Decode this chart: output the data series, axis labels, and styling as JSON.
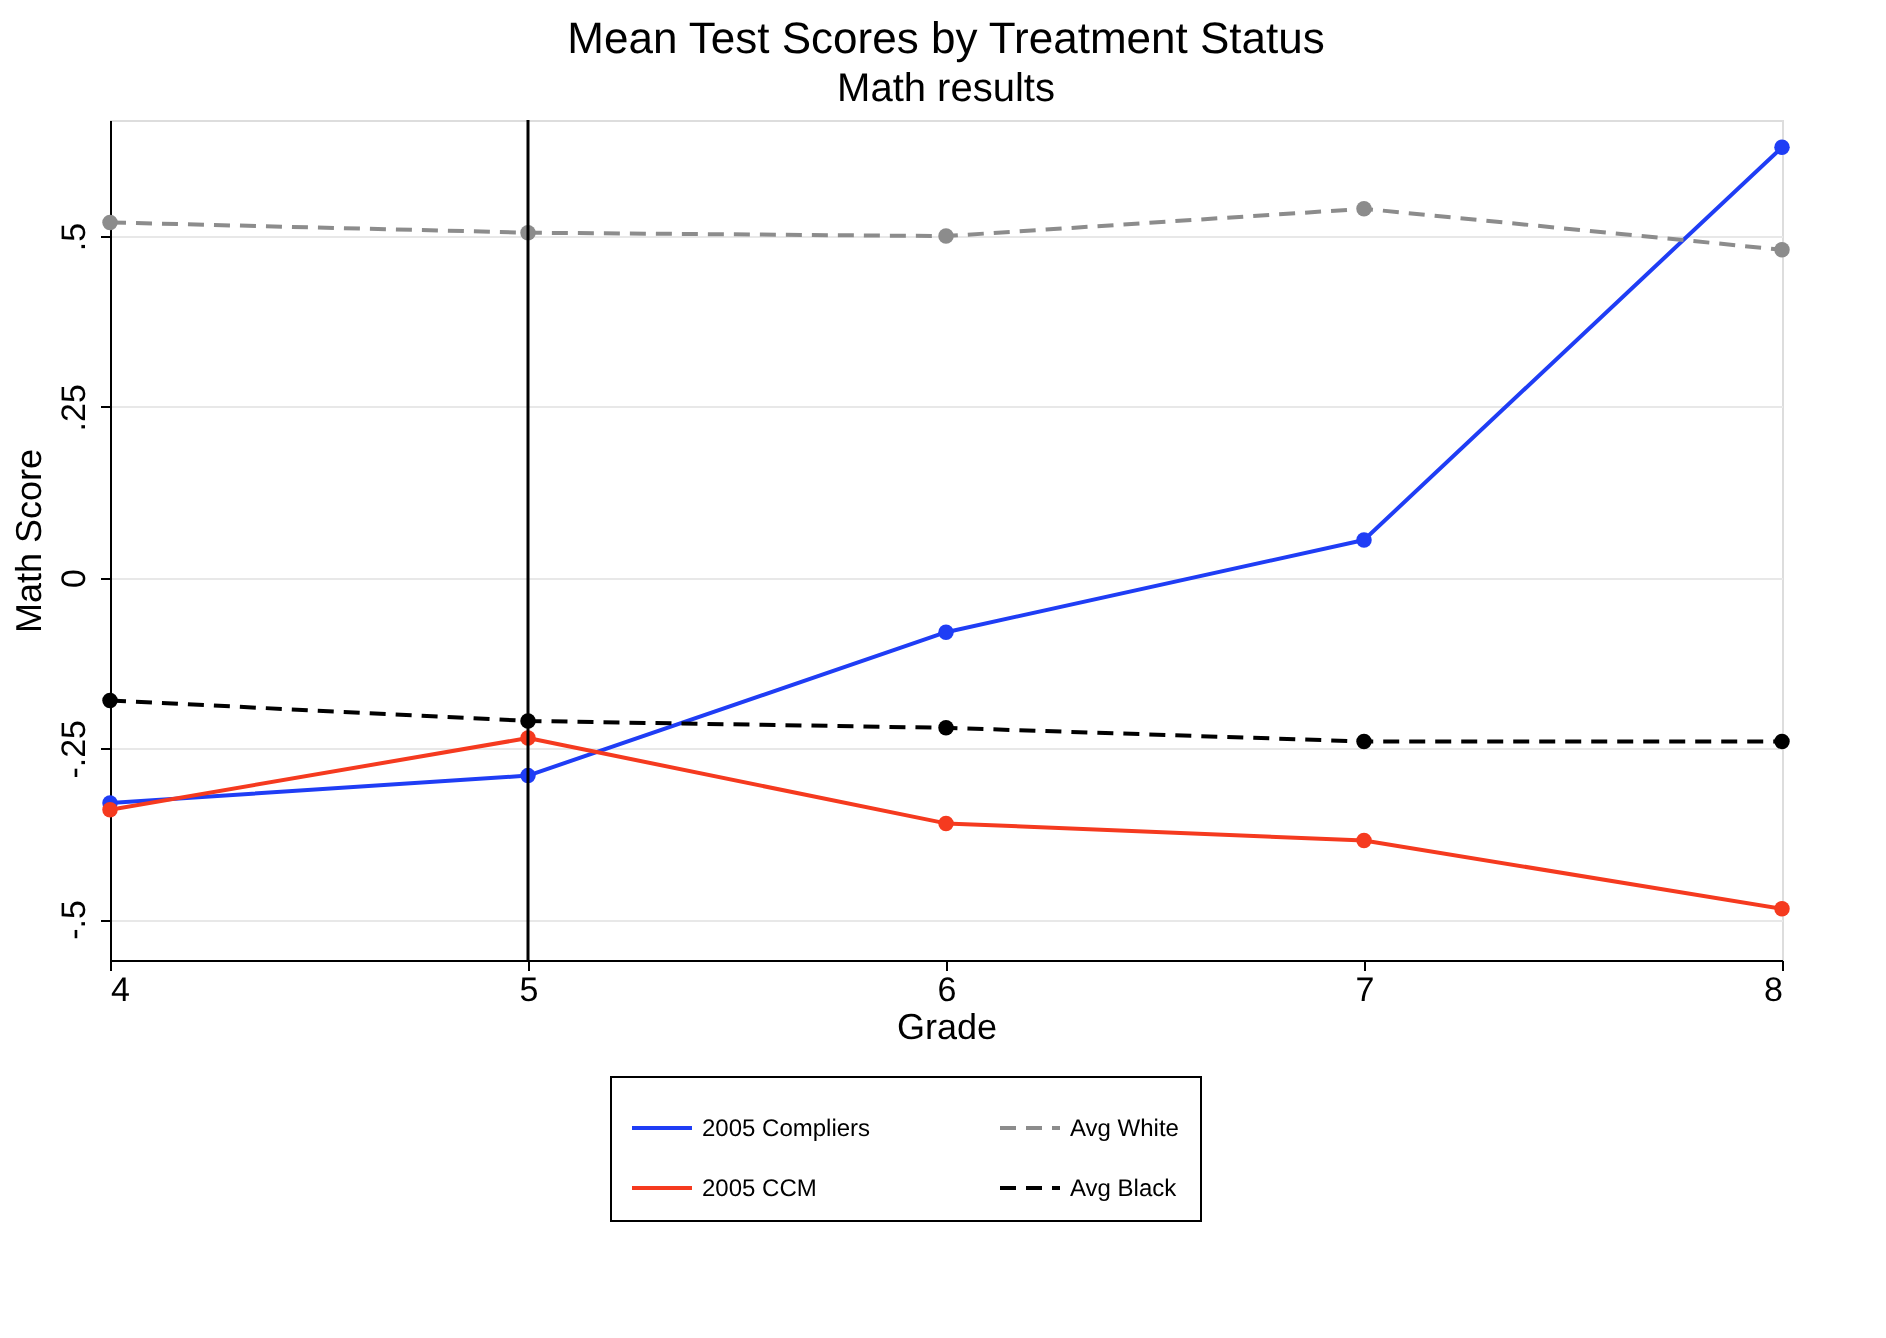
{
  "chart_data": {
    "type": "line",
    "title": "Mean Test Scores by Treatment Status",
    "subtitle": "Math results",
    "xlabel": "Grade",
    "ylabel": "Math Score",
    "x": [
      4,
      5,
      6,
      7,
      8
    ],
    "series": [
      {
        "name": "2005 Compliers",
        "color": "#1f3df5",
        "line_style": "solid",
        "values": [
          -0.33,
          -0.29,
          -0.08,
          0.055,
          0.63
        ]
      },
      {
        "name": "2005 CCM",
        "color": "#f53a1f",
        "line_style": "solid",
        "values": [
          -0.34,
          -0.235,
          -0.36,
          -0.385,
          -0.485
        ]
      },
      {
        "name": "Avg White",
        "color": "#8c8c8c",
        "line_style": "dashed",
        "values": [
          0.52,
          0.505,
          0.5,
          0.54,
          0.48
        ]
      },
      {
        "name": "Avg Black",
        "color": "#000000",
        "line_style": "dashed",
        "values": [
          -0.18,
          -0.21,
          -0.22,
          -0.24,
          -0.24
        ]
      }
    ],
    "xlim": [
      4,
      8
    ],
    "xticks": [
      4,
      5,
      6,
      7,
      8
    ],
    "ylim": [
      -0.56,
      0.67
    ],
    "yticks": [
      {
        "value": -0.5,
        "label": "-.5"
      },
      {
        "value": -0.25,
        "label": "-.25"
      },
      {
        "value": 0,
        "label": "0"
      },
      {
        "value": 0.25,
        "label": ".25"
      },
      {
        "value": 0.5,
        "label": ".5"
      }
    ],
    "ref_lines": [
      {
        "axis": "x",
        "value": 5,
        "color": "#000000",
        "line_style": "solid"
      }
    ],
    "grid": "y",
    "marker": "circle",
    "legend": "bottom"
  }
}
